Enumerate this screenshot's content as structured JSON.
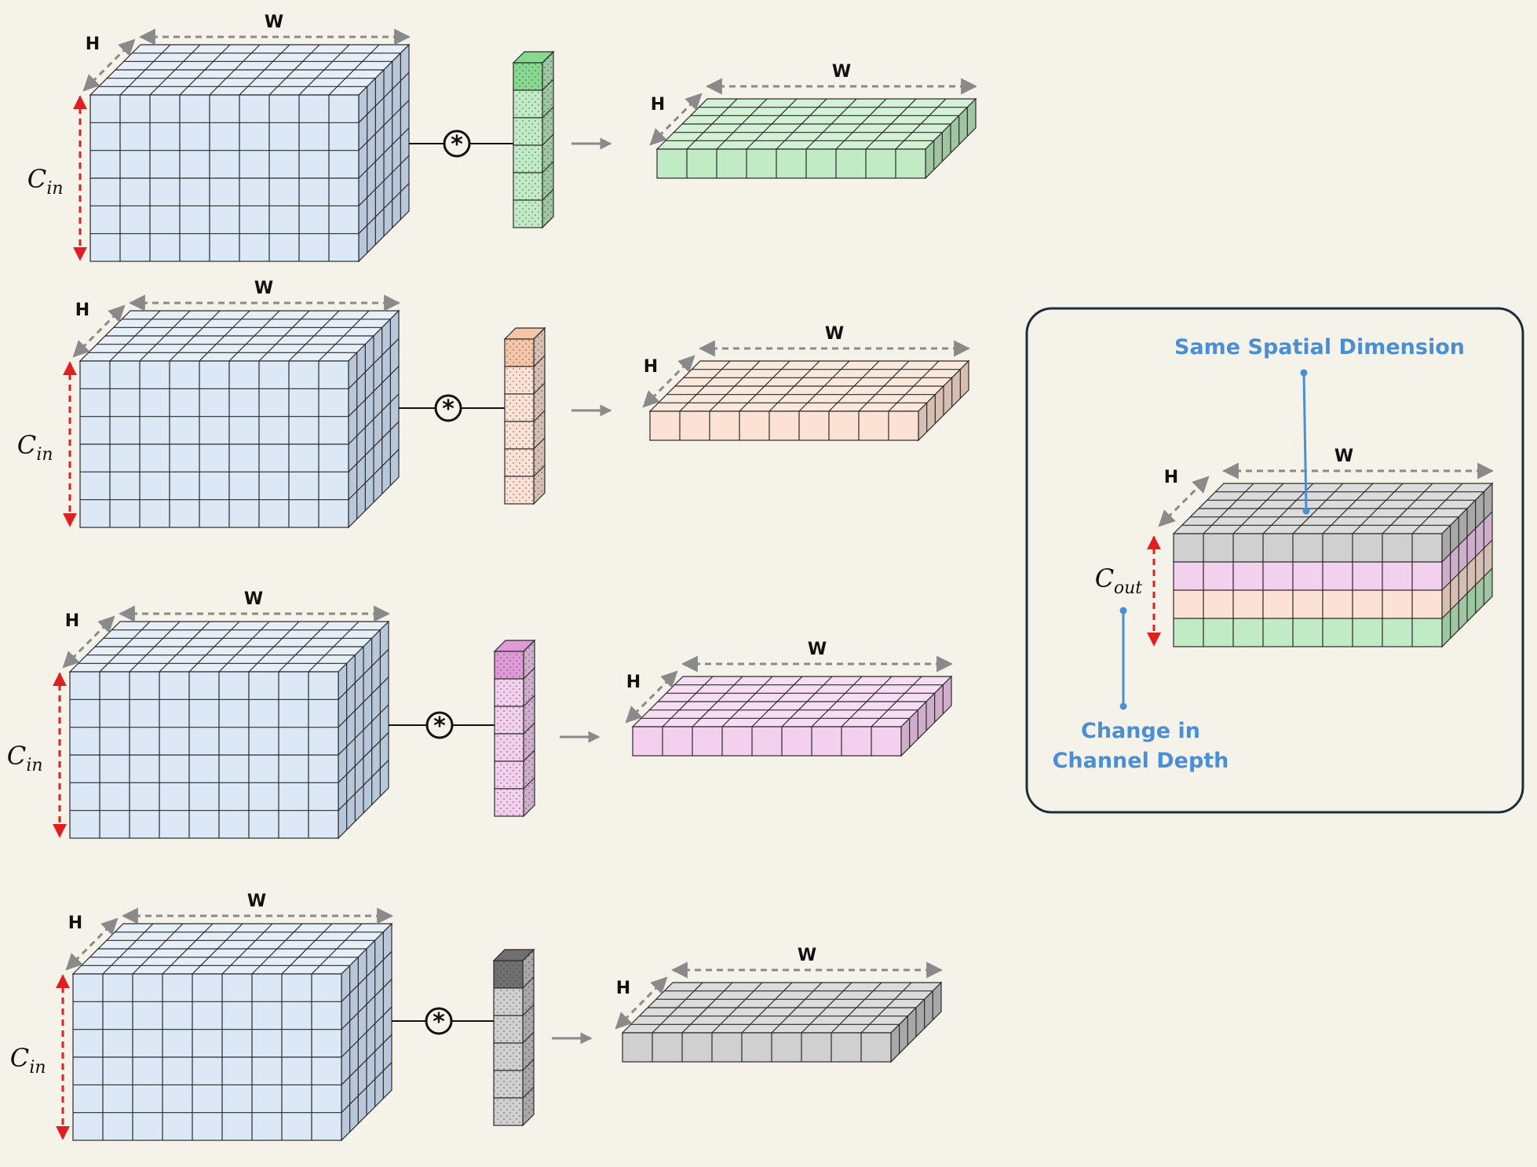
{
  "colors": {
    "background": "#f5f2ea",
    "input": {
      "front": "#dce8f5",
      "top": "#e6eef8",
      "side": "#b8c7d9"
    },
    "filters": [
      {
        "front": "#c1ebc4",
        "top": "#d3f1d5",
        "side": "#9ec6a1",
        "cap": "#86d98e"
      },
      {
        "front": "#fbe2d4",
        "top": "#fce9de",
        "side": "#d6bfb2",
        "cap": "#f5c5a8"
      },
      {
        "front": "#f3d0ee",
        "top": "#f7ddf3",
        "side": "#cfaecb",
        "cap": "#e09ad8"
      },
      {
        "front": "#d0d0d0",
        "top": "#dcdcdc",
        "side": "#a8a8a8",
        "cap": "#707070"
      }
    ],
    "arrow_gray": "#8a8a8a",
    "arrow_red": "#e02020",
    "note_blue": "#4a8fd4",
    "box_border": "#1f2d3a"
  },
  "icons": {
    "convolution": "asterisk-circle-icon"
  },
  "rows": [
    {
      "w_label": "W",
      "h_label": "H",
      "c_label": "C",
      "c_sub": "in",
      "op_symbol": "*",
      "out_w_label": "W",
      "out_h_label": "H"
    },
    {
      "w_label": "W",
      "h_label": "H",
      "c_label": "C",
      "c_sub": "in",
      "op_symbol": "*",
      "out_w_label": "W",
      "out_h_label": "H"
    },
    {
      "w_label": "W",
      "h_label": "H",
      "c_label": "C",
      "c_sub": "in",
      "op_symbol": "*",
      "out_w_label": "W",
      "out_h_label": "H"
    },
    {
      "w_label": "W",
      "h_label": "H",
      "c_label": "C",
      "c_sub": "in",
      "op_symbol": "*",
      "out_w_label": "W",
      "out_h_label": "H"
    }
  ],
  "summary": {
    "top_note": "Same Spatial Dimension",
    "w_label": "W",
    "h_label": "H",
    "c_label": "C",
    "c_sub": "out",
    "bottom_note_line1": "Change in",
    "bottom_note_line2": "Channel Depth"
  }
}
